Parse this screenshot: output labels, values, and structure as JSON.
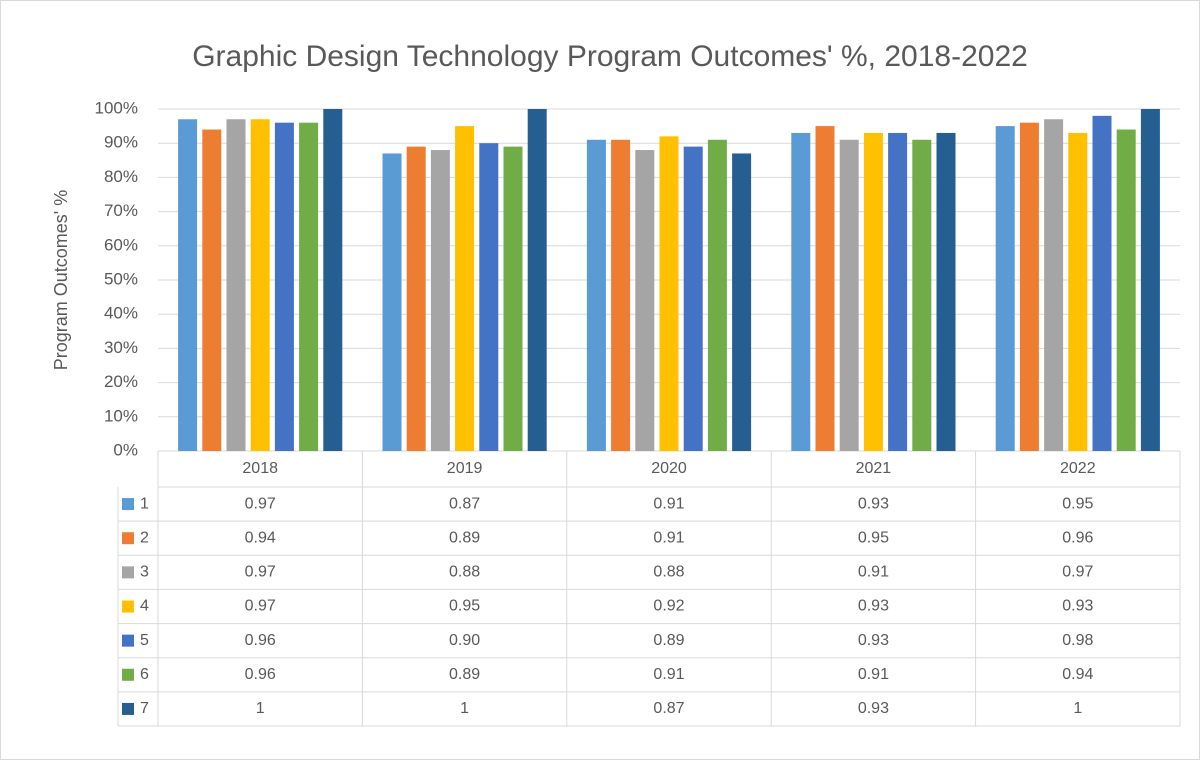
{
  "chart_data": {
    "type": "bar",
    "title": "Graphic Design Technology Program Outcomes' %, 2018-2022",
    "y_label": "Program Outcomes' %",
    "categories": [
      "2018",
      "2019",
      "2020",
      "2021",
      "2022"
    ],
    "series": [
      {
        "name": "1",
        "color": "#5b9bd5",
        "values": [
          97,
          87,
          91,
          93,
          95
        ],
        "value_labels": [
          "0.97",
          "0.87",
          "0.91",
          "0.93",
          "0.95"
        ]
      },
      {
        "name": "2",
        "color": "#ed7d31",
        "values": [
          94,
          89,
          91,
          95,
          96
        ],
        "value_labels": [
          "0.94",
          "0.89",
          "0.91",
          "0.95",
          "0.96"
        ]
      },
      {
        "name": "3",
        "color": "#a5a5a5",
        "values": [
          97,
          88,
          88,
          91,
          97
        ],
        "value_labels": [
          "0.97",
          "0.88",
          "0.88",
          "0.91",
          "0.97"
        ]
      },
      {
        "name": "4",
        "color": "#ffc000",
        "values": [
          97,
          95,
          92,
          93,
          93
        ],
        "value_labels": [
          "0.97",
          "0.95",
          "0.92",
          "0.93",
          "0.93"
        ]
      },
      {
        "name": "5",
        "color": "#4472c4",
        "values": [
          96,
          90,
          89,
          93,
          98
        ],
        "value_labels": [
          "0.96",
          "0.90",
          "0.89",
          "0.93",
          "0.98"
        ]
      },
      {
        "name": "6",
        "color": "#70ad47",
        "values": [
          96,
          89,
          91,
          91,
          94
        ],
        "value_labels": [
          "0.96",
          "0.89",
          "0.91",
          "0.91",
          "0.94"
        ]
      },
      {
        "name": "7",
        "color": "#255e91",
        "values": [
          100,
          100,
          87,
          93,
          100
        ],
        "value_labels": [
          "1",
          "1",
          "0.87",
          "0.93",
          "1"
        ]
      }
    ],
    "ylim": [
      0,
      100
    ],
    "yticks": [
      {
        "value": 0,
        "label": "0%"
      },
      {
        "value": 10,
        "label": "10%"
      },
      {
        "value": 20,
        "label": "20%"
      },
      {
        "value": 30,
        "label": "30%"
      },
      {
        "value": 40,
        "label": "40%"
      },
      {
        "value": 50,
        "label": "50%"
      },
      {
        "value": 60,
        "label": "60%"
      },
      {
        "value": 70,
        "label": "70%"
      },
      {
        "value": 80,
        "label": "80%"
      },
      {
        "value": 90,
        "label": "90%"
      },
      {
        "value": 100,
        "label": "100%"
      }
    ],
    "grid": true
  }
}
